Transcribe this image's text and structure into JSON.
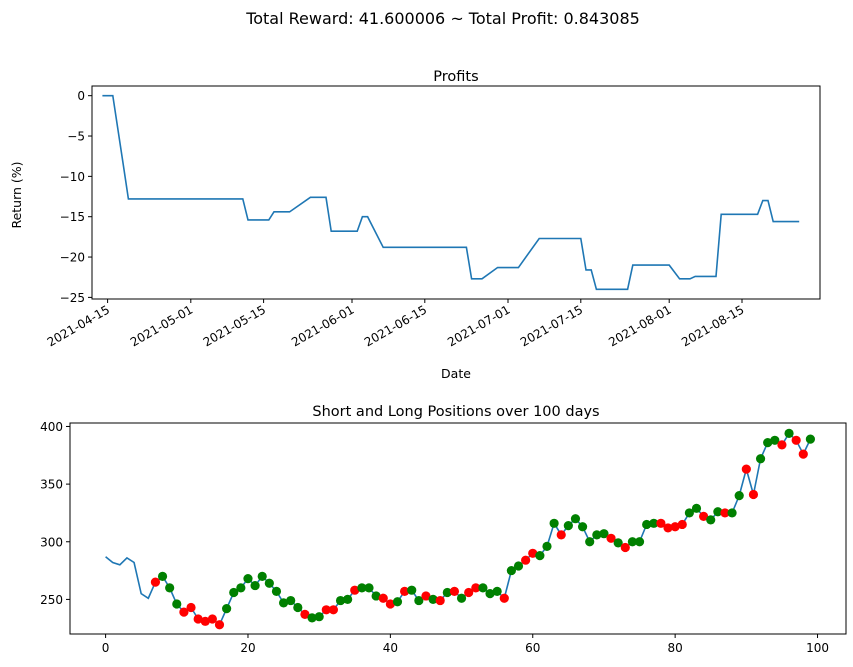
{
  "suptitle": "Total Reward: 41.600006 ~ Total Profit: 0.843085",
  "chart_data": [
    {
      "type": "line",
      "title": "Profits",
      "xlabel": "Date",
      "ylabel": "Return (%)",
      "x_axis": "date",
      "xlim": [
        "2021-04-12",
        "2021-08-30"
      ],
      "ylim": [
        -25.2,
        1.2
      ],
      "xticks": [
        "2021-04-15",
        "2021-05-01",
        "2021-05-15",
        "2021-06-01",
        "2021-06-15",
        "2021-07-01",
        "2021-07-15",
        "2021-08-01",
        "2021-08-15"
      ],
      "yticks": [
        0,
        -5,
        -10,
        -15,
        -20,
        -25
      ],
      "line_color": "#1f77b4",
      "grid": false,
      "series": [
        {
          "points": [
            [
              "2021-04-14",
              0
            ],
            [
              "2021-04-16",
              0
            ],
            [
              "2021-04-18",
              -8.5
            ],
            [
              "2021-04-19",
              -12.8
            ],
            [
              "2021-05-11",
              -12.8
            ],
            [
              "2021-05-12",
              -15.4
            ],
            [
              "2021-05-16",
              -15.4
            ],
            [
              "2021-05-17",
              -14.4
            ],
            [
              "2021-05-20",
              -14.4
            ],
            [
              "2021-05-24",
              -12.6
            ],
            [
              "2021-05-27",
              -12.6
            ],
            [
              "2021-05-28",
              -16.8
            ],
            [
              "2021-06-02",
              -16.8
            ],
            [
              "2021-06-03",
              -15.0
            ],
            [
              "2021-06-04",
              -15.0
            ],
            [
              "2021-06-07",
              -18.8
            ],
            [
              "2021-06-23",
              -18.8
            ],
            [
              "2021-06-24",
              -22.7
            ],
            [
              "2021-06-26",
              -22.7
            ],
            [
              "2021-06-29",
              -21.3
            ],
            [
              "2021-07-03",
              -21.3
            ],
            [
              "2021-07-07",
              -17.7
            ],
            [
              "2021-07-15",
              -17.7
            ],
            [
              "2021-07-16",
              -21.6
            ],
            [
              "2021-07-17",
              -21.6
            ],
            [
              "2021-07-18",
              -24.0
            ],
            [
              "2021-07-24",
              -24.0
            ],
            [
              "2021-07-25",
              -21.0
            ],
            [
              "2021-08-01",
              -21.0
            ],
            [
              "2021-08-03",
              -22.7
            ],
            [
              "2021-08-05",
              -22.7
            ],
            [
              "2021-08-06",
              -22.4
            ],
            [
              "2021-08-10",
              -22.4
            ],
            [
              "2021-08-11",
              -14.7
            ],
            [
              "2021-08-18",
              -14.7
            ],
            [
              "2021-08-19",
              -13.0
            ],
            [
              "2021-08-20",
              -13.0
            ],
            [
              "2021-08-21",
              -15.6
            ],
            [
              "2021-08-26",
              -15.6
            ]
          ]
        }
      ]
    },
    {
      "type": "line",
      "title": "Short and Long Positions over 100 days",
      "xlabel": "",
      "ylabel": "",
      "xlim": [
        -5,
        104
      ],
      "ylim": [
        220,
        403
      ],
      "xticks": [
        0,
        20,
        40,
        60,
        80,
        100
      ],
      "yticks": [
        250,
        300,
        350,
        400
      ],
      "line_color": "#1f77b4",
      "long_color": "#008000",
      "short_color": "#ff0000",
      "grid": false,
      "x": [
        0,
        1,
        2,
        3,
        4,
        5,
        6,
        7,
        8,
        9,
        10,
        11,
        12,
        13,
        14,
        15,
        16,
        17,
        18,
        19,
        20,
        21,
        22,
        23,
        24,
        25,
        26,
        27,
        28,
        29,
        30,
        31,
        32,
        33,
        34,
        35,
        36,
        37,
        38,
        39,
        40,
        41,
        42,
        43,
        44,
        45,
        46,
        47,
        48,
        49,
        50,
        51,
        52,
        53,
        54,
        55,
        56,
        57,
        58,
        59,
        60,
        61,
        62,
        63,
        64,
        65,
        66,
        67,
        68,
        69,
        70,
        71,
        72,
        73,
        74,
        75,
        76,
        77,
        78,
        79,
        80,
        81,
        82,
        83,
        84,
        85,
        86,
        87,
        88,
        89,
        90,
        91,
        92,
        93,
        94,
        95,
        96,
        97,
        98,
        99
      ],
      "values": [
        287,
        282,
        280,
        286,
        282,
        255,
        251,
        265,
        270,
        260,
        246,
        239,
        243,
        233,
        231,
        233,
        228,
        242,
        256,
        260,
        268,
        262,
        270,
        264,
        257,
        247,
        249,
        243,
        237,
        234,
        235,
        241,
        241,
        249,
        250,
        258,
        260,
        260,
        253,
        251,
        246,
        248,
        257,
        258,
        249,
        253,
        250,
        249,
        256,
        257,
        251,
        256,
        260,
        260,
        255,
        257,
        251,
        275,
        279,
        284,
        290,
        288,
        296,
        316,
        306,
        314,
        320,
        313,
        300,
        306,
        307,
        303,
        299,
        295,
        300,
        300,
        315,
        316,
        316,
        312,
        313,
        315,
        325,
        329,
        322,
        319,
        326,
        325,
        325,
        340,
        363,
        341,
        372,
        386,
        388,
        384,
        394,
        388,
        376,
        389
      ],
      "positions": [
        "none",
        "none",
        "none",
        "none",
        "none",
        "none",
        "none",
        "short",
        "long",
        "long",
        "long",
        "short",
        "short",
        "short",
        "short",
        "short",
        "short",
        "long",
        "long",
        "long",
        "long",
        "long",
        "long",
        "long",
        "long",
        "long",
        "long",
        "long",
        "short",
        "long",
        "long",
        "short",
        "short",
        "long",
        "long",
        "short",
        "long",
        "long",
        "long",
        "short",
        "short",
        "long",
        "short",
        "long",
        "long",
        "short",
        "long",
        "short",
        "long",
        "short",
        "long",
        "short",
        "short",
        "long",
        "long",
        "long",
        "short",
        "long",
        "long",
        "short",
        "short",
        "long",
        "long",
        "long",
        "short",
        "long",
        "long",
        "long",
        "long",
        "long",
        "long",
        "short",
        "long",
        "short",
        "long",
        "long",
        "long",
        "long",
        "short",
        "short",
        "short",
        "short",
        "long",
        "long",
        "short",
        "long",
        "long",
        "short",
        "long",
        "long",
        "short",
        "short",
        "long",
        "long",
        "long",
        "short",
        "long",
        "short",
        "short",
        "long"
      ]
    }
  ]
}
